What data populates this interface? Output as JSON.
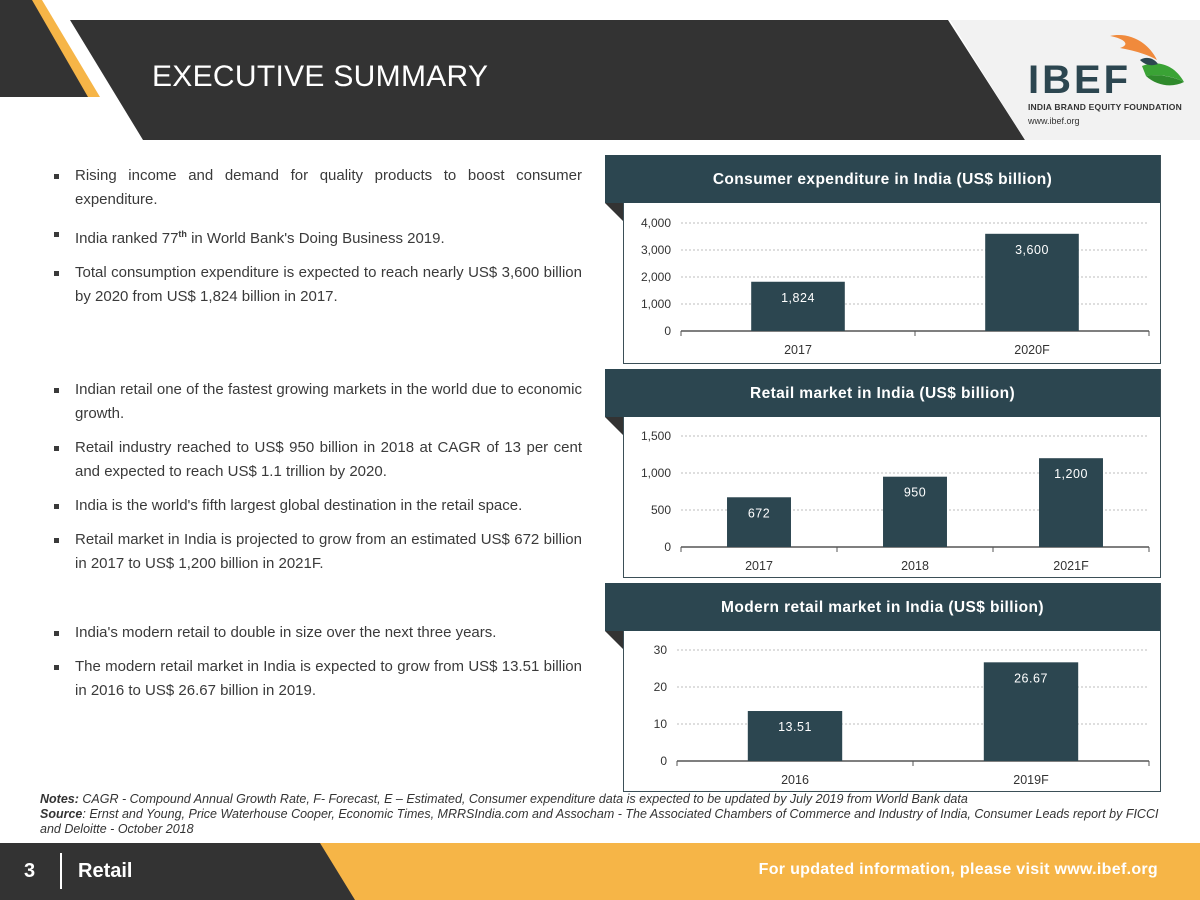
{
  "header": {
    "title": "EXECUTIVE SUMMARY",
    "logo": {
      "name": "IBEF",
      "subtitle": "INDIA BRAND EQUITY FOUNDATION",
      "url": "www.ibef.org"
    }
  },
  "bullets": {
    "group1": [
      "Rising income and demand for quality products to boost consumer expenditure.",
      "India ranked 77th in World Bank's Doing Business 2019.",
      "Total consumption expenditure is expected to reach nearly US$ 3,600 billion by 2020 from US$ 1,824 billion in 2017."
    ],
    "group2": [
      "Indian retail one of the fastest growing markets in the world due to economic growth.",
      "Retail industry reached to US$ 950 billion in 2018 at CAGR of 13 per cent and expected to reach US$ 1.1 trillion by 2020.",
      "India is the world's fifth largest global destination in the retail space.",
      "Retail market in India is projected to grow from an estimated US$ 672 billion in 2017 to US$ 1,200 billion in 2021F."
    ],
    "group3": [
      "India's modern retail to double in size over the next three years.",
      "The modern retail market in India is expected to grow from US$ 13.51 billion in 2016 to US$ 26.67 billion in 2019."
    ]
  },
  "chart_data": [
    {
      "type": "bar",
      "title": "Consumer expenditure in India (US$ billion)",
      "categories": [
        "2017",
        "2020F"
      ],
      "values": [
        1824,
        3600
      ],
      "value_labels": [
        "1,824",
        "3,600"
      ],
      "yticks": [
        "0",
        "1,000",
        "2,000",
        "3,000",
        "4,000"
      ],
      "ylim": [
        0,
        4000
      ],
      "xlabel": "",
      "ylabel": "",
      "grid": true,
      "legend": "none"
    },
    {
      "type": "bar",
      "title": "Retail market in India (US$ billion)",
      "categories": [
        "2017",
        "2018",
        "2021F"
      ],
      "values": [
        672,
        950,
        1200
      ],
      "value_labels": [
        "672",
        "950",
        "1,200"
      ],
      "yticks": [
        "0",
        "500",
        "1,000",
        "1,500"
      ],
      "ylim": [
        0,
        1500
      ],
      "xlabel": "",
      "ylabel": "",
      "grid": true,
      "legend": "none"
    },
    {
      "type": "bar",
      "title": "Modern retail market in India (US$ billion)",
      "categories": [
        "2016",
        "2019F"
      ],
      "values": [
        13.51,
        26.67
      ],
      "value_labels": [
        "13.51",
        "26.67"
      ],
      "yticks": [
        "0",
        "10",
        "20",
        "30"
      ],
      "ylim": [
        0,
        30
      ],
      "xlabel": "",
      "ylabel": "",
      "grid": true,
      "legend": "none"
    }
  ],
  "notes": {
    "notes_label": "Notes:",
    "notes_text": " CAGR - Compound Annual Growth Rate, F- Forecast, E – Estimated, Consumer expenditure data is expected to be updated by July 2019 from World Bank data",
    "source_label": "Source",
    "source_text": ": Ernst and Young, Price Waterhouse Cooper, Economic Times, MRRSIndia.com and Assocham - The Associated Chambers of Commerce and Industry of India, Consumer Leads report by FICCI and Deloitte - October 2018"
  },
  "footer": {
    "page_number": "3",
    "section": "Retail",
    "right_text": "For updated information, please visit www.ibef.org"
  },
  "colors": {
    "bar": "#2c4650",
    "accent": "#f6b547",
    "dark": "#333333",
    "header": "#2c4650"
  }
}
